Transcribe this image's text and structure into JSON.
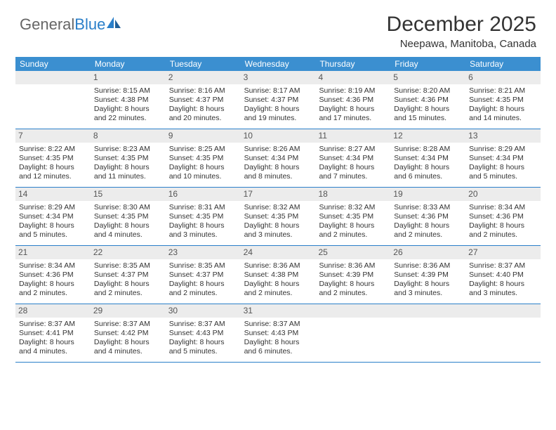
{
  "brand": {
    "part1": "General",
    "part2": "Blue"
  },
  "title": "December 2025",
  "location": "Neepawa, Manitoba, Canada",
  "colors": {
    "header_bg": "#3b8fd0",
    "header_text": "#ffffff",
    "line": "#2a7fc9",
    "daynum_bg": "#ececec",
    "text": "#333333"
  },
  "day_headers": [
    "Sunday",
    "Monday",
    "Tuesday",
    "Wednesday",
    "Thursday",
    "Friday",
    "Saturday"
  ],
  "weeks": [
    [
      {
        "num": "",
        "sunrise": "",
        "sunset": "",
        "daylight1": "",
        "daylight2": ""
      },
      {
        "num": "1",
        "sunrise": "Sunrise: 8:15 AM",
        "sunset": "Sunset: 4:38 PM",
        "daylight1": "Daylight: 8 hours",
        "daylight2": "and 22 minutes."
      },
      {
        "num": "2",
        "sunrise": "Sunrise: 8:16 AM",
        "sunset": "Sunset: 4:37 PM",
        "daylight1": "Daylight: 8 hours",
        "daylight2": "and 20 minutes."
      },
      {
        "num": "3",
        "sunrise": "Sunrise: 8:17 AM",
        "sunset": "Sunset: 4:37 PM",
        "daylight1": "Daylight: 8 hours",
        "daylight2": "and 19 minutes."
      },
      {
        "num": "4",
        "sunrise": "Sunrise: 8:19 AM",
        "sunset": "Sunset: 4:36 PM",
        "daylight1": "Daylight: 8 hours",
        "daylight2": "and 17 minutes."
      },
      {
        "num": "5",
        "sunrise": "Sunrise: 8:20 AM",
        "sunset": "Sunset: 4:36 PM",
        "daylight1": "Daylight: 8 hours",
        "daylight2": "and 15 minutes."
      },
      {
        "num": "6",
        "sunrise": "Sunrise: 8:21 AM",
        "sunset": "Sunset: 4:35 PM",
        "daylight1": "Daylight: 8 hours",
        "daylight2": "and 14 minutes."
      }
    ],
    [
      {
        "num": "7",
        "sunrise": "Sunrise: 8:22 AM",
        "sunset": "Sunset: 4:35 PM",
        "daylight1": "Daylight: 8 hours",
        "daylight2": "and 12 minutes."
      },
      {
        "num": "8",
        "sunrise": "Sunrise: 8:23 AM",
        "sunset": "Sunset: 4:35 PM",
        "daylight1": "Daylight: 8 hours",
        "daylight2": "and 11 minutes."
      },
      {
        "num": "9",
        "sunrise": "Sunrise: 8:25 AM",
        "sunset": "Sunset: 4:35 PM",
        "daylight1": "Daylight: 8 hours",
        "daylight2": "and 10 minutes."
      },
      {
        "num": "10",
        "sunrise": "Sunrise: 8:26 AM",
        "sunset": "Sunset: 4:34 PM",
        "daylight1": "Daylight: 8 hours",
        "daylight2": "and 8 minutes."
      },
      {
        "num": "11",
        "sunrise": "Sunrise: 8:27 AM",
        "sunset": "Sunset: 4:34 PM",
        "daylight1": "Daylight: 8 hours",
        "daylight2": "and 7 minutes."
      },
      {
        "num": "12",
        "sunrise": "Sunrise: 8:28 AM",
        "sunset": "Sunset: 4:34 PM",
        "daylight1": "Daylight: 8 hours",
        "daylight2": "and 6 minutes."
      },
      {
        "num": "13",
        "sunrise": "Sunrise: 8:29 AM",
        "sunset": "Sunset: 4:34 PM",
        "daylight1": "Daylight: 8 hours",
        "daylight2": "and 5 minutes."
      }
    ],
    [
      {
        "num": "14",
        "sunrise": "Sunrise: 8:29 AM",
        "sunset": "Sunset: 4:34 PM",
        "daylight1": "Daylight: 8 hours",
        "daylight2": "and 5 minutes."
      },
      {
        "num": "15",
        "sunrise": "Sunrise: 8:30 AM",
        "sunset": "Sunset: 4:35 PM",
        "daylight1": "Daylight: 8 hours",
        "daylight2": "and 4 minutes."
      },
      {
        "num": "16",
        "sunrise": "Sunrise: 8:31 AM",
        "sunset": "Sunset: 4:35 PM",
        "daylight1": "Daylight: 8 hours",
        "daylight2": "and 3 minutes."
      },
      {
        "num": "17",
        "sunrise": "Sunrise: 8:32 AM",
        "sunset": "Sunset: 4:35 PM",
        "daylight1": "Daylight: 8 hours",
        "daylight2": "and 3 minutes."
      },
      {
        "num": "18",
        "sunrise": "Sunrise: 8:32 AM",
        "sunset": "Sunset: 4:35 PM",
        "daylight1": "Daylight: 8 hours",
        "daylight2": "and 2 minutes."
      },
      {
        "num": "19",
        "sunrise": "Sunrise: 8:33 AM",
        "sunset": "Sunset: 4:36 PM",
        "daylight1": "Daylight: 8 hours",
        "daylight2": "and 2 minutes."
      },
      {
        "num": "20",
        "sunrise": "Sunrise: 8:34 AM",
        "sunset": "Sunset: 4:36 PM",
        "daylight1": "Daylight: 8 hours",
        "daylight2": "and 2 minutes."
      }
    ],
    [
      {
        "num": "21",
        "sunrise": "Sunrise: 8:34 AM",
        "sunset": "Sunset: 4:36 PM",
        "daylight1": "Daylight: 8 hours",
        "daylight2": "and 2 minutes."
      },
      {
        "num": "22",
        "sunrise": "Sunrise: 8:35 AM",
        "sunset": "Sunset: 4:37 PM",
        "daylight1": "Daylight: 8 hours",
        "daylight2": "and 2 minutes."
      },
      {
        "num": "23",
        "sunrise": "Sunrise: 8:35 AM",
        "sunset": "Sunset: 4:37 PM",
        "daylight1": "Daylight: 8 hours",
        "daylight2": "and 2 minutes."
      },
      {
        "num": "24",
        "sunrise": "Sunrise: 8:36 AM",
        "sunset": "Sunset: 4:38 PM",
        "daylight1": "Daylight: 8 hours",
        "daylight2": "and 2 minutes."
      },
      {
        "num": "25",
        "sunrise": "Sunrise: 8:36 AM",
        "sunset": "Sunset: 4:39 PM",
        "daylight1": "Daylight: 8 hours",
        "daylight2": "and 2 minutes."
      },
      {
        "num": "26",
        "sunrise": "Sunrise: 8:36 AM",
        "sunset": "Sunset: 4:39 PM",
        "daylight1": "Daylight: 8 hours",
        "daylight2": "and 3 minutes."
      },
      {
        "num": "27",
        "sunrise": "Sunrise: 8:37 AM",
        "sunset": "Sunset: 4:40 PM",
        "daylight1": "Daylight: 8 hours",
        "daylight2": "and 3 minutes."
      }
    ],
    [
      {
        "num": "28",
        "sunrise": "Sunrise: 8:37 AM",
        "sunset": "Sunset: 4:41 PM",
        "daylight1": "Daylight: 8 hours",
        "daylight2": "and 4 minutes."
      },
      {
        "num": "29",
        "sunrise": "Sunrise: 8:37 AM",
        "sunset": "Sunset: 4:42 PM",
        "daylight1": "Daylight: 8 hours",
        "daylight2": "and 4 minutes."
      },
      {
        "num": "30",
        "sunrise": "Sunrise: 8:37 AM",
        "sunset": "Sunset: 4:43 PM",
        "daylight1": "Daylight: 8 hours",
        "daylight2": "and 5 minutes."
      },
      {
        "num": "31",
        "sunrise": "Sunrise: 8:37 AM",
        "sunset": "Sunset: 4:43 PM",
        "daylight1": "Daylight: 8 hours",
        "daylight2": "and 6 minutes."
      },
      {
        "num": "",
        "sunrise": "",
        "sunset": "",
        "daylight1": "",
        "daylight2": ""
      },
      {
        "num": "",
        "sunrise": "",
        "sunset": "",
        "daylight1": "",
        "daylight2": ""
      },
      {
        "num": "",
        "sunrise": "",
        "sunset": "",
        "daylight1": "",
        "daylight2": ""
      }
    ]
  ]
}
